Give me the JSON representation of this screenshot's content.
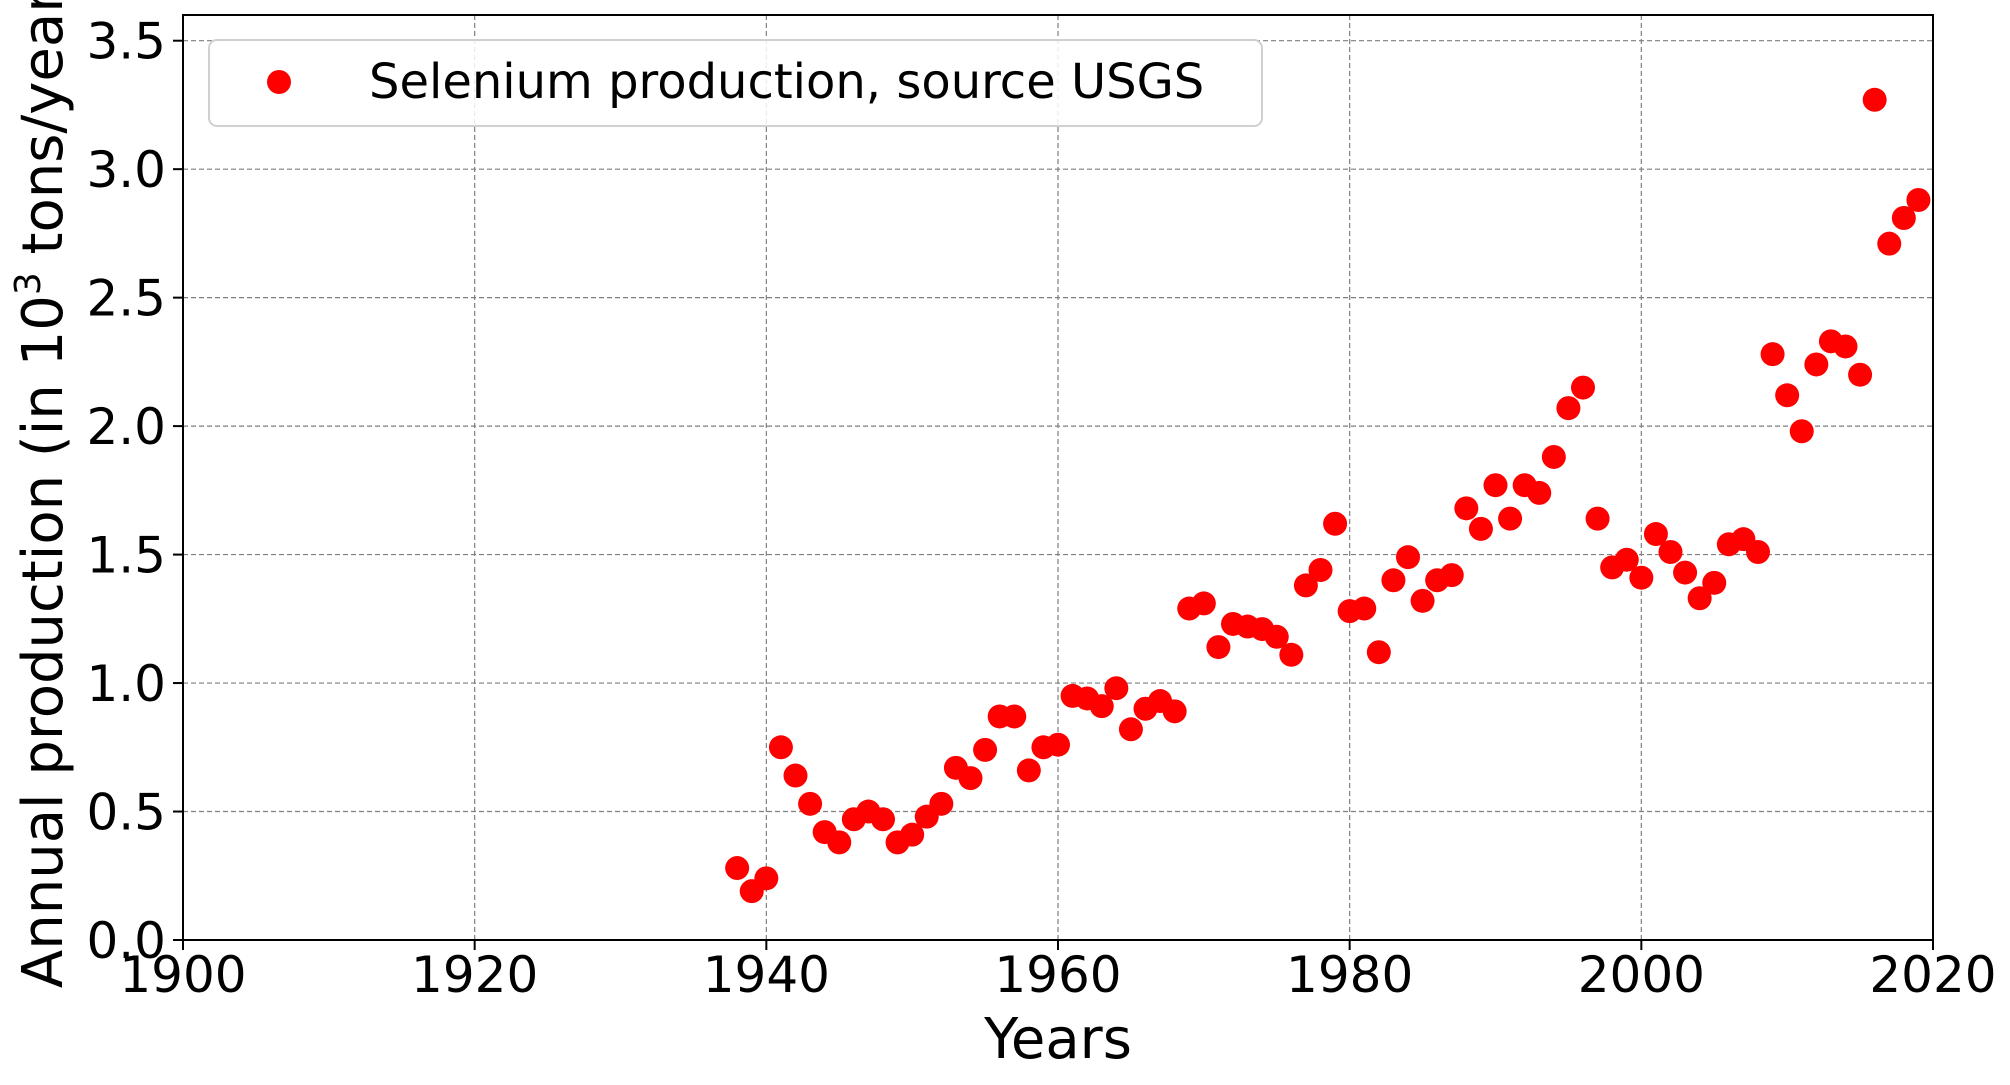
{
  "chart_data": {
    "type": "scatter",
    "xlabel": "Years",
    "ylabel_prefix": "Annual production (in 10",
    "ylabel_sup": "3",
    "ylabel_suffix": " tons/year)",
    "xlim": [
      1900,
      2020
    ],
    "ylim": [
      0,
      3.6
    ],
    "xticks": [
      1900,
      1920,
      1940,
      1960,
      1980,
      2000,
      2020
    ],
    "yticks": [
      "0.0",
      "0.5",
      "1.0",
      "1.5",
      "2.0",
      "2.5",
      "3.0",
      "3.5"
    ],
    "grid": true,
    "legend_position": "top-left",
    "colors": {
      "marker": "#ff0000"
    },
    "series": [
      {
        "name": "Selenium production, source USGS",
        "x": [
          1938,
          1939,
          1940,
          1941,
          1942,
          1943,
          1944,
          1945,
          1946,
          1947,
          1948,
          1949,
          1950,
          1951,
          1952,
          1953,
          1954,
          1955,
          1956,
          1957,
          1958,
          1959,
          1960,
          1961,
          1962,
          1963,
          1964,
          1965,
          1966,
          1967,
          1968,
          1969,
          1970,
          1971,
          1972,
          1973,
          1974,
          1975,
          1976,
          1977,
          1978,
          1979,
          1980,
          1981,
          1982,
          1983,
          1984,
          1985,
          1986,
          1987,
          1988,
          1989,
          1990,
          1991,
          1992,
          1993,
          1994,
          1995,
          1996,
          1997,
          1998,
          1999,
          2000,
          2001,
          2002,
          2003,
          2004,
          2005,
          2006,
          2007,
          2008,
          2009,
          2010,
          2011,
          2012,
          2013,
          2014,
          2015,
          2016,
          2017,
          2018,
          2019
        ],
        "y": [
          0.28,
          0.19,
          0.24,
          0.75,
          0.64,
          0.53,
          0.42,
          0.38,
          0.47,
          0.5,
          0.47,
          0.38,
          0.41,
          0.48,
          0.53,
          0.67,
          0.63,
          0.74,
          0.87,
          0.87,
          0.66,
          0.75,
          0.76,
          0.95,
          0.94,
          0.91,
          0.98,
          0.82,
          0.9,
          0.93,
          0.89,
          1.29,
          1.31,
          1.14,
          1.23,
          1.22,
          1.21,
          1.18,
          1.11,
          1.38,
          1.44,
          1.62,
          1.28,
          1.29,
          1.12,
          1.4,
          1.49,
          1.32,
          1.4,
          1.42,
          1.68,
          1.6,
          1.77,
          1.64,
          1.77,
          1.74,
          1.88,
          2.07,
          2.15,
          1.64,
          1.45,
          1.48,
          1.41,
          1.58,
          1.51,
          1.43,
          1.33,
          1.39,
          1.54,
          1.56,
          1.51,
          2.28,
          2.12,
          1.98,
          2.24,
          2.33,
          2.31,
          2.2,
          3.27,
          2.71,
          2.81,
          2.88
        ]
      }
    ]
  }
}
